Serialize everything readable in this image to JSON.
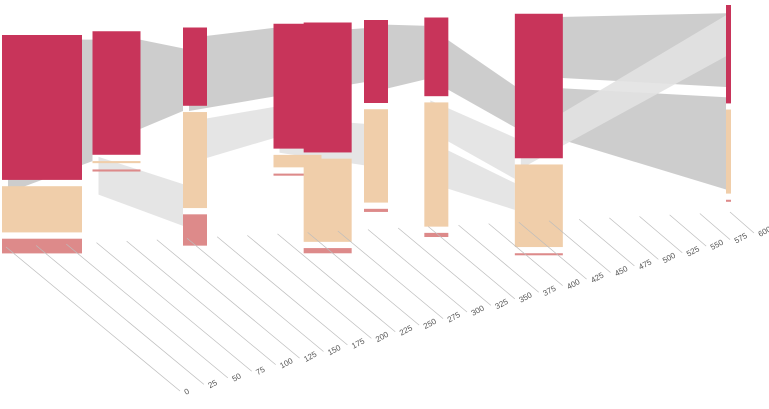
{
  "chart_data": {
    "type": "area",
    "title": "",
    "xlabel": "",
    "ylabel": "",
    "xlim": [
      0,
      600
    ],
    "x_ticks": [
      0,
      25,
      50,
      75,
      100,
      125,
      150,
      175,
      200,
      225,
      250,
      275,
      300,
      325,
      350,
      375,
      400,
      425,
      450,
      475,
      500,
      525,
      550,
      575,
      600
    ],
    "x_tick_labels": [
      "0",
      "25",
      "50",
      "75",
      "100",
      "125",
      "150",
      "175",
      "200",
      "225",
      "250",
      "275",
      "300",
      "325",
      "350",
      "375",
      "400",
      "425",
      "450",
      "475",
      "500",
      "525",
      "550",
      "575",
      "600"
    ],
    "grid": false,
    "legend": "none",
    "colors": {
      "series_a": "#c8345a",
      "series_b": "#f0ceaa",
      "series_c": "#dd8a8a",
      "flow": "#c8c8c8",
      "flow_light": "#e2e2e2",
      "tick_line": "#bdbdbd",
      "tick_text": "#555555"
    },
    "stages": [
      {
        "x": 0,
        "a": 138,
        "b": 44,
        "c": 14
      },
      {
        "x": 25,
        "a": 0,
        "b": 0,
        "c": 0
      },
      {
        "x": 50,
        "a": 0,
        "b": 0,
        "c": 0
      },
      {
        "x": 75,
        "a": 118,
        "b": 2,
        "c": 2
      },
      {
        "x": 100,
        "a": 0,
        "b": 0,
        "c": 0
      },
      {
        "x": 125,
        "a": 0,
        "b": 0,
        "c": 0
      },
      {
        "x": 150,
        "a": 75,
        "b": 92,
        "c": 30
      },
      {
        "x": 175,
        "a": 0,
        "b": 0,
        "c": 0
      },
      {
        "x": 200,
        "a": 0,
        "b": 0,
        "c": 0
      },
      {
        "x": 225,
        "a": 120,
        "b": 12,
        "c": 2
      },
      {
        "x": 250,
        "a": 125,
        "b": 80,
        "c": 5
      },
      {
        "x": 275,
        "a": 0,
        "b": 0,
        "c": 0
      },
      {
        "x": 300,
        "a": 80,
        "b": 90,
        "c": 3
      },
      {
        "x": 325,
        "a": 0,
        "b": 0,
        "c": 0
      },
      {
        "x": 350,
        "a": 76,
        "b": 120,
        "c": 4
      },
      {
        "x": 375,
        "a": 0,
        "b": 0,
        "c": 0
      },
      {
        "x": 400,
        "a": 0,
        "b": 0,
        "c": 0
      },
      {
        "x": 425,
        "a": 140,
        "b": 80,
        "c": 2
      },
      {
        "x": 450,
        "a": 0,
        "b": 0,
        "c": 0
      },
      {
        "x": 475,
        "a": 0,
        "b": 0,
        "c": 0
      },
      {
        "x": 500,
        "a": 0,
        "b": 0,
        "c": 0
      },
      {
        "x": 525,
        "a": 0,
        "b": 0,
        "c": 0
      },
      {
        "x": 550,
        "a": 0,
        "b": 0,
        "c": 0
      },
      {
        "x": 575,
        "a": 0,
        "b": 0,
        "c": 0
      },
      {
        "x": 600,
        "a": 96,
        "b": 82,
        "c": 2
      }
    ]
  }
}
